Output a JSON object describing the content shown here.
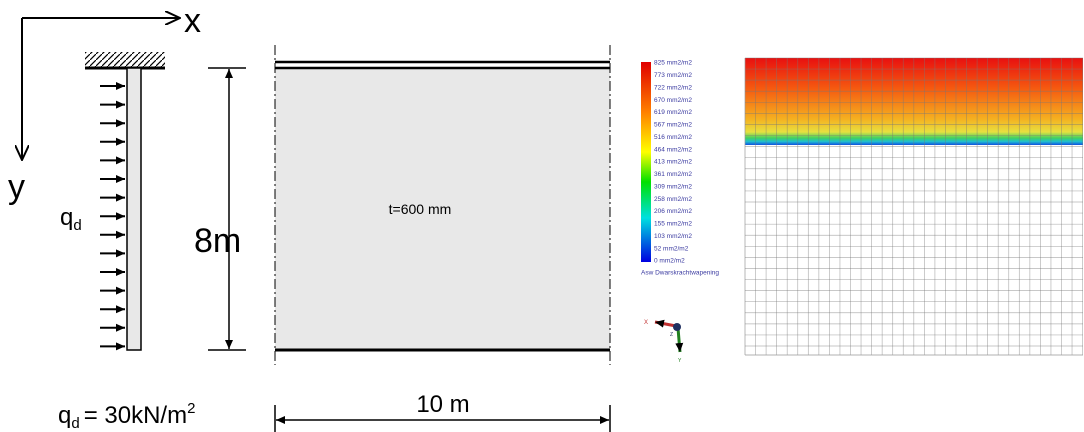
{
  "axes": {
    "x": "x",
    "y": "y"
  },
  "load_label": {
    "symbol": "q",
    "subscript": "d"
  },
  "height_label": "8m",
  "thickness_label": "t=600 mm",
  "width_label": "10 m",
  "load_value": {
    "symbol": "q",
    "subscript": "d",
    "equation": "= 30kN/m",
    "superscript": "2"
  },
  "legend": {
    "labels": [
      "825 mm2/m2",
      "773 mm2/m2",
      "722 mm2/m2",
      "670 mm2/m2",
      "619 mm2/m2",
      "567 mm2/m2",
      "516 mm2/m2",
      "464 mm2/m2",
      "413 mm2/m2",
      "361 mm2/m2",
      "309 mm2/m2",
      "258 mm2/m2",
      "206 mm2/m2",
      "155 mm2/m2",
      "103 mm2/m2",
      "52 mm2/m2",
      "0 mm2/m2"
    ],
    "caption": "Asw Dwarskrachtwapening"
  },
  "triad": {
    "x": "X",
    "z": "Z",
    "y": "Y"
  }
}
